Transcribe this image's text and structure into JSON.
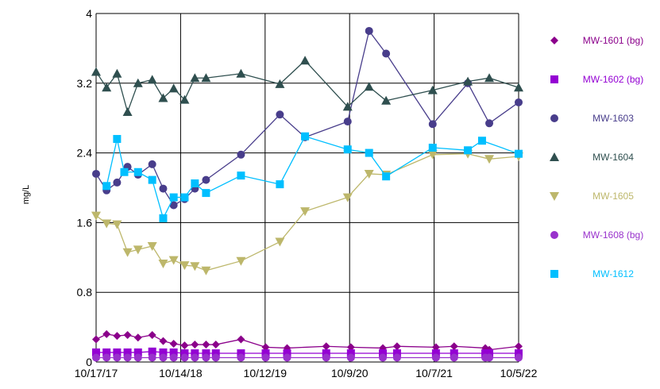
{
  "chart_data": {
    "type": "line",
    "title": "",
    "xlabel": "",
    "ylabel": "mg/L",
    "x_tick_labels": [
      "10/17/17",
      "10/14/18",
      "10/12/19",
      "10/9/20",
      "10/7/21",
      "10/5/22"
    ],
    "y_tick_labels": [
      "0",
      "0.8",
      "1.6",
      "2.4",
      "3.2",
      "4"
    ],
    "ylim": [
      0,
      4
    ],
    "xlim": [
      "2017-10-17",
      "2022-10-05"
    ],
    "grid": true,
    "legend_position": "right",
    "series": [
      {
        "name": "MW-1601 (bg)",
        "color": "#8B008B",
        "marker": "diamond",
        "points": [
          [
            "2017-10-17",
            0.26
          ],
          [
            "2017-12-01",
            0.32
          ],
          [
            "2018-01-15",
            0.3
          ],
          [
            "2018-03-01",
            0.31
          ],
          [
            "2018-04-15",
            0.28
          ],
          [
            "2018-06-15",
            0.31
          ],
          [
            "2018-08-01",
            0.24
          ],
          [
            "2018-09-15",
            0.21
          ],
          [
            "2018-11-01",
            0.19
          ],
          [
            "2018-12-15",
            0.2
          ],
          [
            "2019-02-01",
            0.2
          ],
          [
            "2019-03-15",
            0.2
          ],
          [
            "2019-07-01",
            0.26
          ],
          [
            "2019-10-15",
            0.17
          ],
          [
            "2020-01-15",
            0.16
          ],
          [
            "2020-07-01",
            0.18
          ],
          [
            "2020-10-15",
            0.17
          ],
          [
            "2021-03-01",
            0.16
          ],
          [
            "2021-05-01",
            0.18
          ],
          [
            "2021-10-15",
            0.17
          ],
          [
            "2022-01-01",
            0.18
          ],
          [
            "2022-05-15",
            0.16
          ],
          [
            "2022-06-01",
            0.14
          ],
          [
            "2022-10-05",
            0.18
          ]
        ]
      },
      {
        "name": "MW-1602 (bg)",
        "color": "#9400D3",
        "marker": "square",
        "points": [
          [
            "2017-10-17",
            0.11
          ],
          [
            "2017-12-01",
            0.11
          ],
          [
            "2018-01-15",
            0.11
          ],
          [
            "2018-03-01",
            0.11
          ],
          [
            "2018-04-15",
            0.11
          ],
          [
            "2018-06-15",
            0.12
          ],
          [
            "2018-08-01",
            0.11
          ],
          [
            "2018-09-15",
            0.11
          ],
          [
            "2018-11-01",
            0.1
          ],
          [
            "2018-12-15",
            0.1
          ],
          [
            "2019-02-01",
            0.1
          ],
          [
            "2019-03-15",
            0.1
          ],
          [
            "2019-07-01",
            0.1
          ],
          [
            "2019-10-15",
            0.1
          ],
          [
            "2020-01-15",
            0.1
          ],
          [
            "2020-07-01",
            0.1
          ],
          [
            "2020-10-15",
            0.1
          ],
          [
            "2021-03-01",
            0.1
          ],
          [
            "2021-05-01",
            0.1
          ],
          [
            "2021-10-15",
            0.1
          ],
          [
            "2022-01-01",
            0.1
          ],
          [
            "2022-05-15",
            0.1
          ],
          [
            "2022-06-01",
            0.1
          ],
          [
            "2022-10-05",
            0.1
          ]
        ]
      },
      {
        "name": "MW-1603",
        "color": "#483D8B",
        "marker": "circle",
        "points": [
          [
            "2017-10-17",
            2.16
          ],
          [
            "2017-12-01",
            1.97
          ],
          [
            "2018-01-15",
            2.06
          ],
          [
            "2018-03-01",
            2.24
          ],
          [
            "2018-04-15",
            2.15
          ],
          [
            "2018-06-15",
            2.27
          ],
          [
            "2018-08-01",
            1.99
          ],
          [
            "2018-09-15",
            1.8
          ],
          [
            "2018-11-01",
            1.87
          ],
          [
            "2018-12-15",
            1.99
          ],
          [
            "2019-02-01",
            2.09
          ],
          [
            "2019-07-01",
            2.38
          ],
          [
            "2019-12-15",
            2.84
          ],
          [
            "2020-04-01",
            2.58
          ],
          [
            "2020-10-01",
            2.76
          ],
          [
            "2021-01-01",
            3.8
          ],
          [
            "2021-03-15",
            3.54
          ],
          [
            "2021-10-01",
            2.73
          ],
          [
            "2022-03-01",
            3.2
          ],
          [
            "2022-06-01",
            2.74
          ],
          [
            "2022-10-05",
            2.98
          ]
        ]
      },
      {
        "name": "MW-1604",
        "color": "#2F4F4F",
        "marker": "triangle-up",
        "points": [
          [
            "2017-10-17",
            3.33
          ],
          [
            "2017-12-01",
            3.15
          ],
          [
            "2018-01-15",
            3.31
          ],
          [
            "2018-03-01",
            2.87
          ],
          [
            "2018-04-15",
            3.2
          ],
          [
            "2018-06-15",
            3.24
          ],
          [
            "2018-08-01",
            3.03
          ],
          [
            "2018-09-15",
            3.14
          ],
          [
            "2018-11-01",
            3.01
          ],
          [
            "2018-12-15",
            3.26
          ],
          [
            "2019-02-01",
            3.26
          ],
          [
            "2019-07-01",
            3.31
          ],
          [
            "2019-12-15",
            3.19
          ],
          [
            "2020-04-01",
            3.46
          ],
          [
            "2020-10-01",
            2.93
          ],
          [
            "2021-01-01",
            3.16
          ],
          [
            "2021-03-15",
            3.0
          ],
          [
            "2021-10-01",
            3.12
          ],
          [
            "2022-03-01",
            3.22
          ],
          [
            "2022-06-01",
            3.26
          ],
          [
            "2022-10-05",
            3.15
          ]
        ]
      },
      {
        "name": "MW-1605",
        "color": "#BDB76B",
        "marker": "triangle-down",
        "points": [
          [
            "2017-10-17",
            1.68
          ],
          [
            "2017-12-01",
            1.59
          ],
          [
            "2018-01-15",
            1.58
          ],
          [
            "2018-03-01",
            1.26
          ],
          [
            "2018-04-15",
            1.29
          ],
          [
            "2018-06-15",
            1.33
          ],
          [
            "2018-08-01",
            1.13
          ],
          [
            "2018-09-15",
            1.17
          ],
          [
            "2018-11-01",
            1.11
          ],
          [
            "2018-12-15",
            1.1
          ],
          [
            "2019-02-01",
            1.05
          ],
          [
            "2019-07-01",
            1.16
          ],
          [
            "2019-12-15",
            1.38
          ],
          [
            "2020-04-01",
            1.73
          ],
          [
            "2020-10-01",
            1.89
          ],
          [
            "2021-01-01",
            2.16
          ],
          [
            "2021-03-15",
            2.15
          ],
          [
            "2021-10-01",
            2.38
          ],
          [
            "2022-03-01",
            2.39
          ],
          [
            "2022-06-01",
            2.33
          ],
          [
            "2022-10-05",
            2.36
          ]
        ]
      },
      {
        "name": "MW-1608 (bg)",
        "color": "#9932CC",
        "marker": "circle",
        "points": [
          [
            "2017-10-17",
            0.05
          ],
          [
            "2017-12-01",
            0.05
          ],
          [
            "2018-01-15",
            0.05
          ],
          [
            "2018-03-01",
            0.05
          ],
          [
            "2018-04-15",
            0.05
          ],
          [
            "2018-06-15",
            0.05
          ],
          [
            "2018-08-01",
            0.05
          ],
          [
            "2018-09-15",
            0.05
          ],
          [
            "2018-11-01",
            0.05
          ],
          [
            "2018-12-15",
            0.05
          ],
          [
            "2019-02-01",
            0.05
          ],
          [
            "2019-03-15",
            0.05
          ],
          [
            "2019-07-01",
            0.05
          ],
          [
            "2019-10-15",
            0.05
          ],
          [
            "2020-01-15",
            0.05
          ],
          [
            "2020-07-01",
            0.05
          ],
          [
            "2020-10-15",
            0.05
          ],
          [
            "2021-03-01",
            0.05
          ],
          [
            "2021-05-01",
            0.05
          ],
          [
            "2021-10-15",
            0.05
          ],
          [
            "2022-01-01",
            0.05
          ],
          [
            "2022-05-15",
            0.05
          ],
          [
            "2022-06-01",
            0.05
          ],
          [
            "2022-10-05",
            0.05
          ]
        ]
      },
      {
        "name": "MW-1612",
        "color": "#00BFFF",
        "marker": "square",
        "points": [
          [
            "2017-10-17",
            null
          ],
          [
            "2017-12-01",
            2.02
          ],
          [
            "2018-01-15",
            2.56
          ],
          [
            "2018-02-15",
            2.18
          ],
          [
            "2018-04-15",
            2.18
          ],
          [
            "2018-06-15",
            2.09
          ],
          [
            "2018-08-01",
            1.65
          ],
          [
            "2018-09-15",
            1.89
          ],
          [
            "2018-11-01",
            1.89
          ],
          [
            "2018-12-15",
            2.05
          ],
          [
            "2019-02-01",
            1.94
          ],
          [
            "2019-07-01",
            2.14
          ],
          [
            "2019-12-15",
            2.04
          ],
          [
            "2020-04-01",
            2.59
          ],
          [
            "2020-10-01",
            2.44
          ],
          [
            "2021-01-01",
            2.4
          ],
          [
            "2021-03-15",
            2.13
          ],
          [
            "2021-10-01",
            2.46
          ],
          [
            "2022-03-01",
            2.43
          ],
          [
            "2022-05-01",
            2.54
          ],
          [
            "2022-10-05",
            2.39
          ]
        ]
      }
    ]
  }
}
